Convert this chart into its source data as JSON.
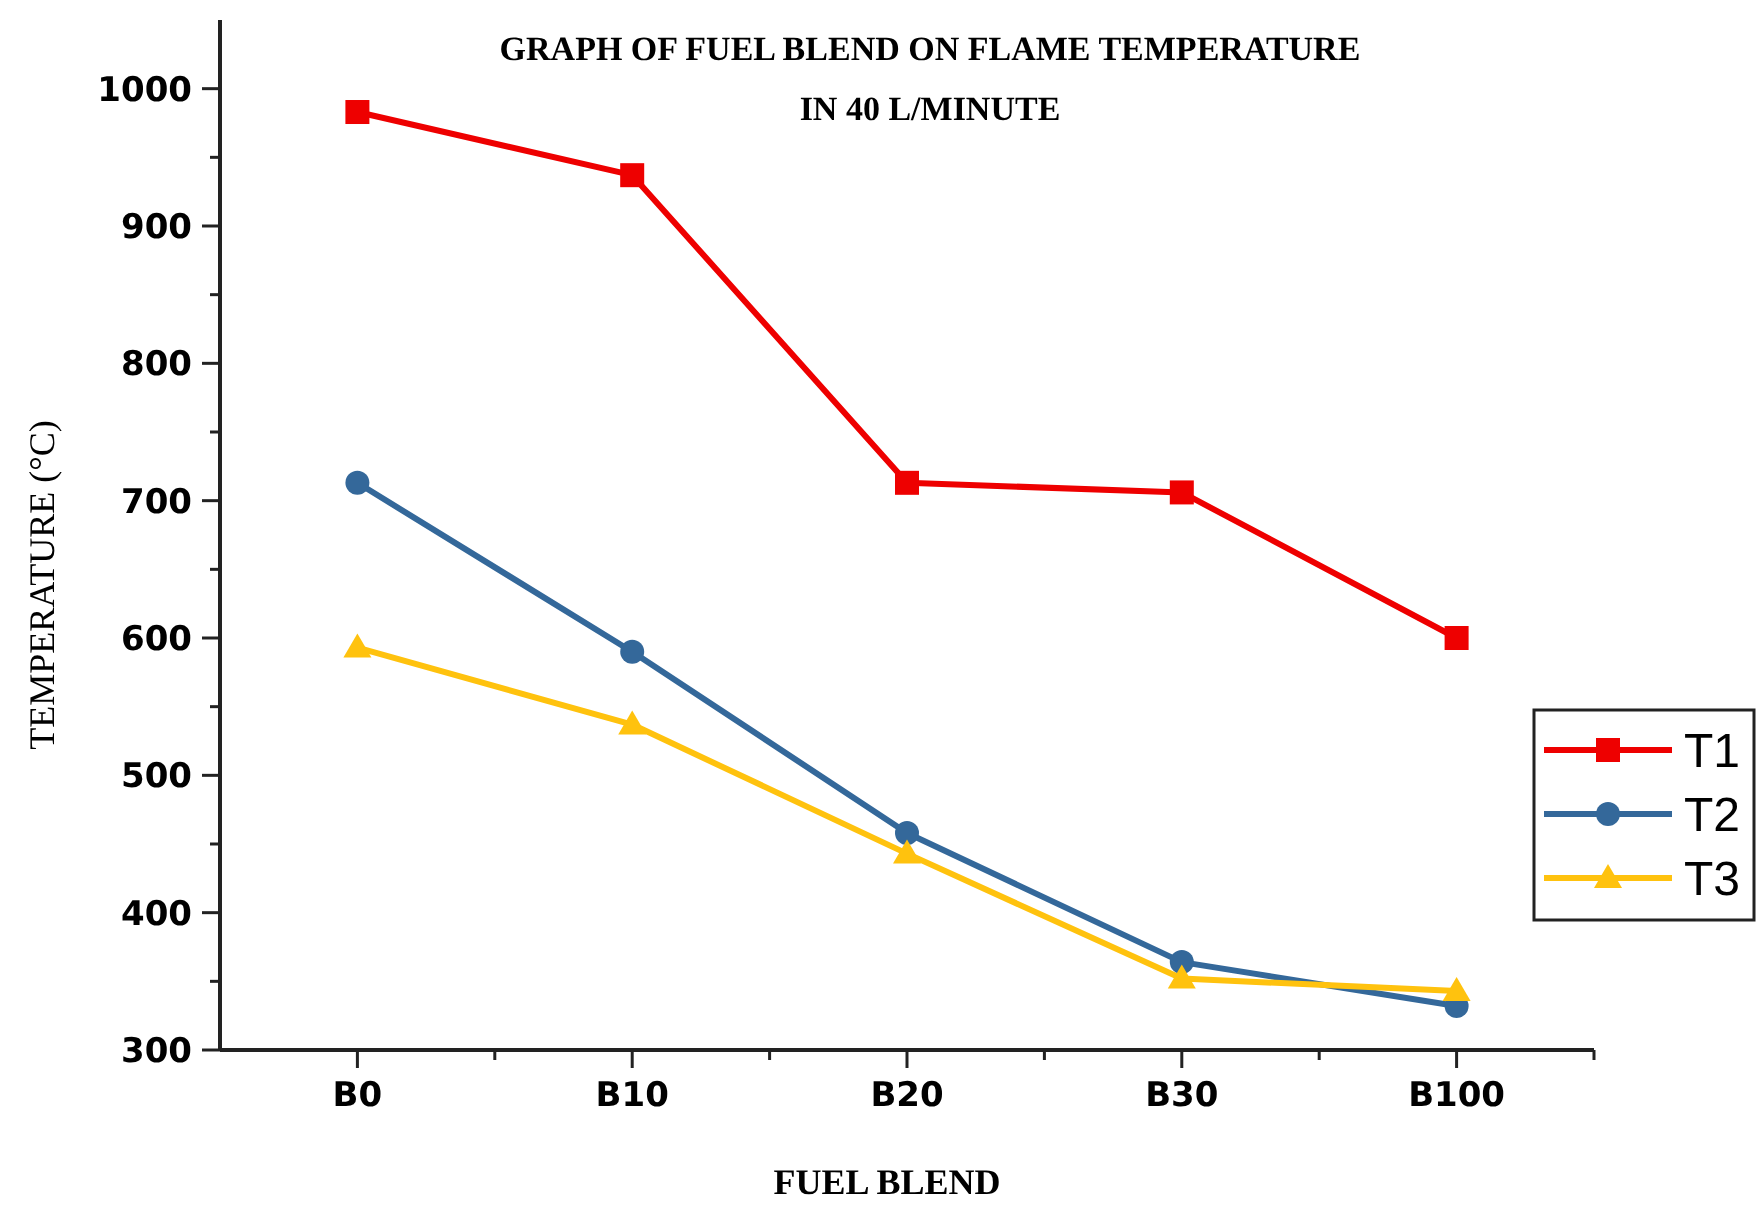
{
  "chart_data": {
    "type": "line",
    "title": "GRAPH OF FUEL BLEND ON FLAME TEMPERATURE\nIN 40 L/MINUTE",
    "xlabel": "FUEL BLEND",
    "ylabel": "TEMPERATURE (°C)",
    "categories": [
      "B0",
      "B10",
      "B20",
      "B30",
      "B100"
    ],
    "series": [
      {
        "name": "T1",
        "color": "#ee0000",
        "marker": "square",
        "values": [
          983,
          937,
          713,
          706,
          600
        ]
      },
      {
        "name": "T2",
        "color": "#34689a",
        "marker": "circle",
        "values": [
          713,
          590,
          458,
          364,
          332
        ]
      },
      {
        "name": "T3",
        "color": "#ffc20e",
        "marker": "triangle",
        "values": [
          593,
          537,
          443,
          352,
          343
        ]
      }
    ],
    "ylim": [
      300,
      1050
    ],
    "yticks": [
      300,
      {
        "value": 350,
        "label": null
      },
      400,
      {
        "value": 450,
        "label": null
      },
      500,
      {
        "value": 550,
        "label": null
      },
      600,
      {
        "value": 650,
        "label": null
      },
      700,
      {
        "value": 750,
        "label": null
      },
      800,
      {
        "value": 850,
        "label": null
      },
      900,
      {
        "value": 950,
        "label": null
      },
      1000
    ],
    "grid": false,
    "legend": "right",
    "line_style": "solid"
  }
}
